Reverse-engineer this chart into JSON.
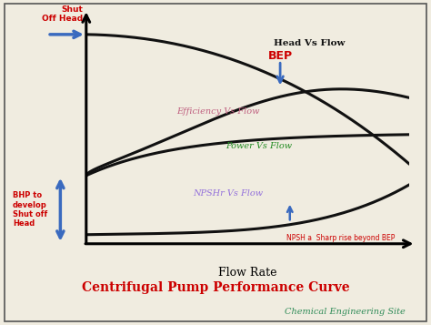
{
  "title": "Centrifugal Pump Performance Curve",
  "subtitle": "Chemical Engineering Site",
  "xlabel": "Flow Rate",
  "bg_color": "#f0ece0",
  "plot_bg": "#ede8d8",
  "border_color": "#555555",
  "title_color": "#cc0000",
  "subtitle_color": "#2e8b57",
  "curve_color": "#111111",
  "head_label": "Head Vs Flow",
  "efficiency_label": "Efficiency Vs Flow",
  "power_label": "Power Vs Flow",
  "npshr_label": "NPSHr Vs Flow",
  "bep_label": "BEP",
  "npsha_label": "NPSH a  Sharp rise beyond BEP",
  "shut_off_head_label": "Shut\nOff Head",
  "bhp_label": "BHP to\ndevelop\nShut off\nHead",
  "head_color": "#111111",
  "efficiency_color": "#c06080",
  "power_color": "#228b22",
  "npshr_color": "#9370db",
  "bep_color": "#cc0000",
  "npsha_color": "#cc0000",
  "arrow_color": "#3a6abf",
  "lw": 2.2
}
